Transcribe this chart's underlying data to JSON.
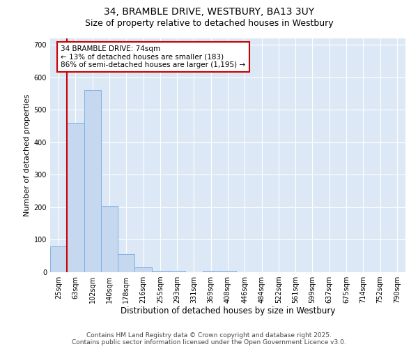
{
  "title_line1": "34, BRAMBLE DRIVE, WESTBURY, BA13 3UY",
  "title_line2": "Size of property relative to detached houses in Westbury",
  "xlabel": "Distribution of detached houses by size in Westbury",
  "ylabel": "Number of detached properties",
  "bar_color": "#c5d8f0",
  "bar_edge_color": "#7fb0e0",
  "bg_color": "#dce8f5",
  "grid_color": "#ffffff",
  "fig_bg_color": "#ffffff",
  "categories": [
    "25sqm",
    "63sqm",
    "102sqm",
    "140sqm",
    "178sqm",
    "216sqm",
    "255sqm",
    "293sqm",
    "331sqm",
    "369sqm",
    "408sqm",
    "446sqm",
    "484sqm",
    "522sqm",
    "561sqm",
    "599sqm",
    "637sqm",
    "675sqm",
    "714sqm",
    "752sqm",
    "790sqm"
  ],
  "values": [
    80,
    460,
    560,
    205,
    55,
    15,
    5,
    5,
    0,
    5,
    5,
    0,
    0,
    0,
    0,
    0,
    0,
    0,
    0,
    0,
    0
  ],
  "ylim": [
    0,
    720
  ],
  "yticks": [
    0,
    100,
    200,
    300,
    400,
    500,
    600,
    700
  ],
  "vline_x_index": 0,
  "vline_color": "#cc0000",
  "annotation_text": "34 BRAMBLE DRIVE: 74sqm\n← 13% of detached houses are smaller (183)\n86% of semi-detached houses are larger (1,195) →",
  "annotation_box_color": "#ffffff",
  "annotation_box_edgecolor": "#cc0000",
  "footer_line1": "Contains HM Land Registry data © Crown copyright and database right 2025.",
  "footer_line2": "Contains public sector information licensed under the Open Government Licence v3.0.",
  "title_fontsize": 10,
  "subtitle_fontsize": 9,
  "tick_fontsize": 7,
  "xlabel_fontsize": 8.5,
  "ylabel_fontsize": 8,
  "footer_fontsize": 6.5,
  "annotation_fontsize": 7.5
}
